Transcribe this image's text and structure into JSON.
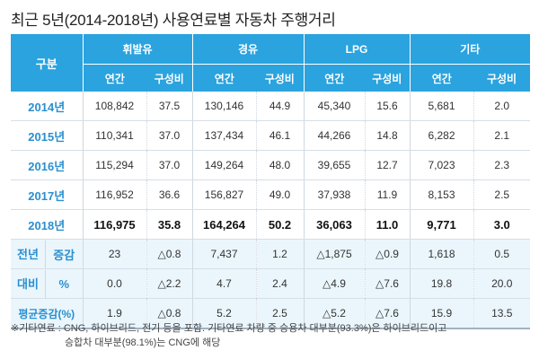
{
  "title": "최근 5년(2014-2018년) 사용연료별 자동차 주행거리",
  "header": {
    "gubun": "구분",
    "groups": [
      "휘발유",
      "경유",
      "LPG",
      "기타"
    ],
    "sub": [
      "연간",
      "구성비",
      "연간",
      "구성비",
      "연간",
      "구성비",
      "연간",
      "구성비"
    ]
  },
  "rows": [
    {
      "label": "2014년",
      "cells": [
        "108,842",
        "37.5",
        "130,146",
        "44.9",
        "45,340",
        "15.6",
        "5,681",
        "2.0"
      ]
    },
    {
      "label": "2015년",
      "cells": [
        "110,341",
        "37.0",
        "137,434",
        "46.1",
        "44,266",
        "14.8",
        "6,282",
        "2.1"
      ]
    },
    {
      "label": "2016년",
      "cells": [
        "115,294",
        "37.0",
        "149,264",
        "48.0",
        "39,655",
        "12.7",
        "7,023",
        "2.3"
      ]
    },
    {
      "label": "2017년",
      "cells": [
        "116,952",
        "36.6",
        "156,827",
        "49.0",
        "37,938",
        "11.9",
        "8,153",
        "2.5"
      ]
    },
    {
      "label": "2018년",
      "cells": [
        "116,975",
        "35.8",
        "164,264",
        "50.2",
        "36,063",
        "11.0",
        "9,771",
        "3.0"
      ]
    }
  ],
  "comparison": {
    "label_line1": "전년",
    "label_line2": "대비",
    "rows": [
      {
        "label": "증감",
        "cells": [
          "23",
          "△0.8",
          "7,437",
          "1.2",
          "△1,875",
          "△0.9",
          "1,618",
          "0.5"
        ]
      },
      {
        "label": "%",
        "cells": [
          "0.0",
          "△2.2",
          "4.7",
          "2.4",
          "△4.9",
          "△7.6",
          "19.8",
          "20.0"
        ]
      }
    ]
  },
  "average": {
    "label": "평균증감(%)",
    "cells": [
      "1.9",
      "△0.8",
      "5.2",
      "2.5",
      "△5.2",
      "△7.6",
      "15.9",
      "13.5"
    ]
  },
  "footnote": {
    "line1": "※기타연료 : CNG, 하이브리드, 전기 등을 포함. 기타연료 차량 중 승용차 대부분(93.3%)은 하이브리드이고",
    "line2": "승합차 대부분(98.1%)는 CNG에 해당"
  },
  "colors": {
    "header_bg": "#2aa3df",
    "accent_text": "#2a8fd0",
    "shade_bg": "#eaf6fc"
  }
}
